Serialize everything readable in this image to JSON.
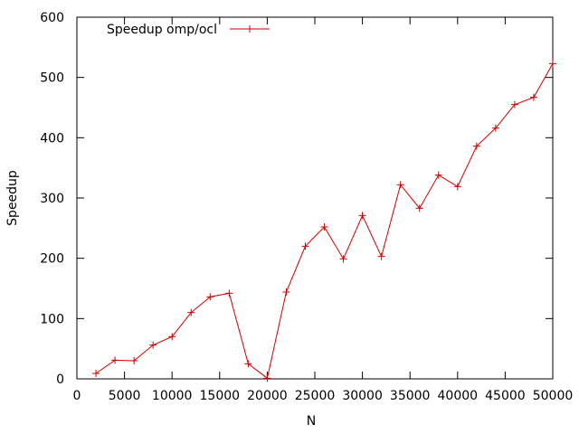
{
  "chart_data": {
    "type": "line",
    "xlabel": "N",
    "ylabel": "Speedup",
    "xlim": [
      0,
      50000
    ],
    "ylim": [
      0,
      600
    ],
    "x_ticks": [
      0,
      5000,
      10000,
      15000,
      20000,
      25000,
      30000,
      35000,
      40000,
      45000,
      50000
    ],
    "y_ticks": [
      0,
      100,
      200,
      300,
      400,
      500,
      600
    ],
    "grid": false,
    "legend_position": "top-left",
    "series": [
      {
        "name": "Speedup omp/ocl",
        "color": "#cc0000",
        "marker": "plus",
        "x": [
          2000,
          4000,
          6000,
          8000,
          10000,
          12000,
          14000,
          16000,
          18000,
          20000,
          22000,
          24000,
          26000,
          28000,
          30000,
          32000,
          34000,
          36000,
          38000,
          40000,
          42000,
          44000,
          46000,
          48000,
          50000
        ],
        "y": [
          9,
          31,
          30,
          56,
          70,
          110,
          136,
          142,
          25,
          1,
          144,
          220,
          252,
          199,
          271,
          203,
          322,
          283,
          338,
          319,
          386,
          416,
          455,
          467,
          523
        ]
      }
    ]
  }
}
